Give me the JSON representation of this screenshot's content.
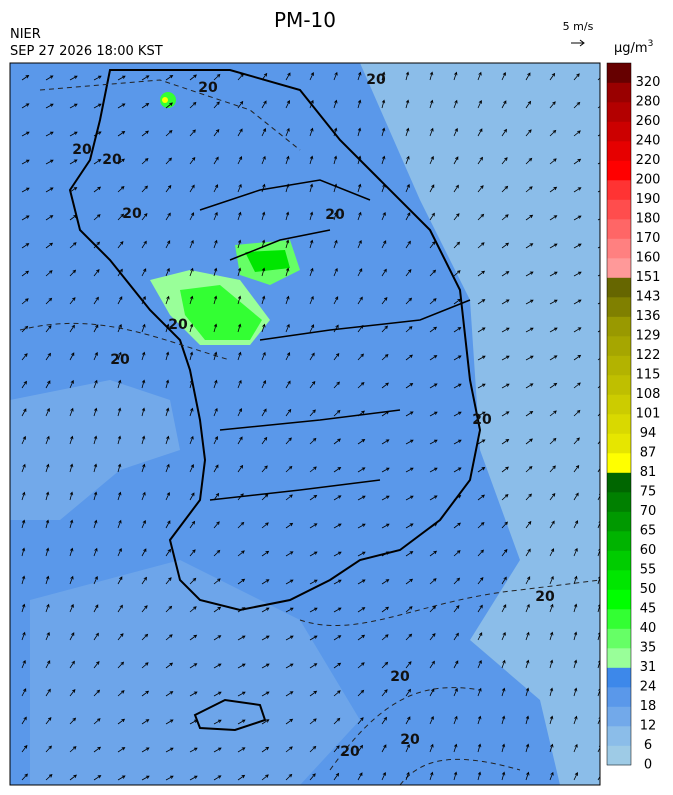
{
  "header": {
    "title": "PM-10",
    "agency": "NIER",
    "timestamp": "SEP 27 2026 18:00 KST",
    "wind_scale": "5 m/s",
    "unit": {
      "base": "μg/m",
      "sup": "3"
    }
  },
  "colorbar": {
    "labels": [
      0,
      6,
      12,
      18,
      24,
      31,
      35,
      40,
      45,
      50,
      55,
      60,
      65,
      70,
      75,
      81,
      87,
      94,
      101,
      108,
      115,
      122,
      129,
      136,
      143,
      151,
      160,
      170,
      180,
      190,
      200,
      220,
      240,
      260,
      280,
      320
    ],
    "colors": [
      "#9ecbe6",
      "#8bbde9",
      "#72a9ea",
      "#5a98ea",
      "#3d88ea",
      "#99ff99",
      "#66ff66",
      "#33ff33",
      "#00ff00",
      "#00e600",
      "#00cc00",
      "#00b300",
      "#009900",
      "#008000",
      "#006600",
      "#ffff00",
      "#e6e600",
      "#d9d900",
      "#cccc00",
      "#bfbf00",
      "#b3b300",
      "#a6a600",
      "#999900",
      "#808000",
      "#666600",
      "#ff9999",
      "#ff8080",
      "#ff6666",
      "#ff4d4d",
      "#ff3333",
      "#ff0000",
      "#e60000",
      "#cc0000",
      "#b30000",
      "#990000",
      "#660000"
    ]
  },
  "contour_labels": [
    "20",
    "20",
    "20",
    "20",
    "20",
    "20",
    "20",
    "20",
    "20",
    "20",
    "20",
    "20",
    "20"
  ]
}
